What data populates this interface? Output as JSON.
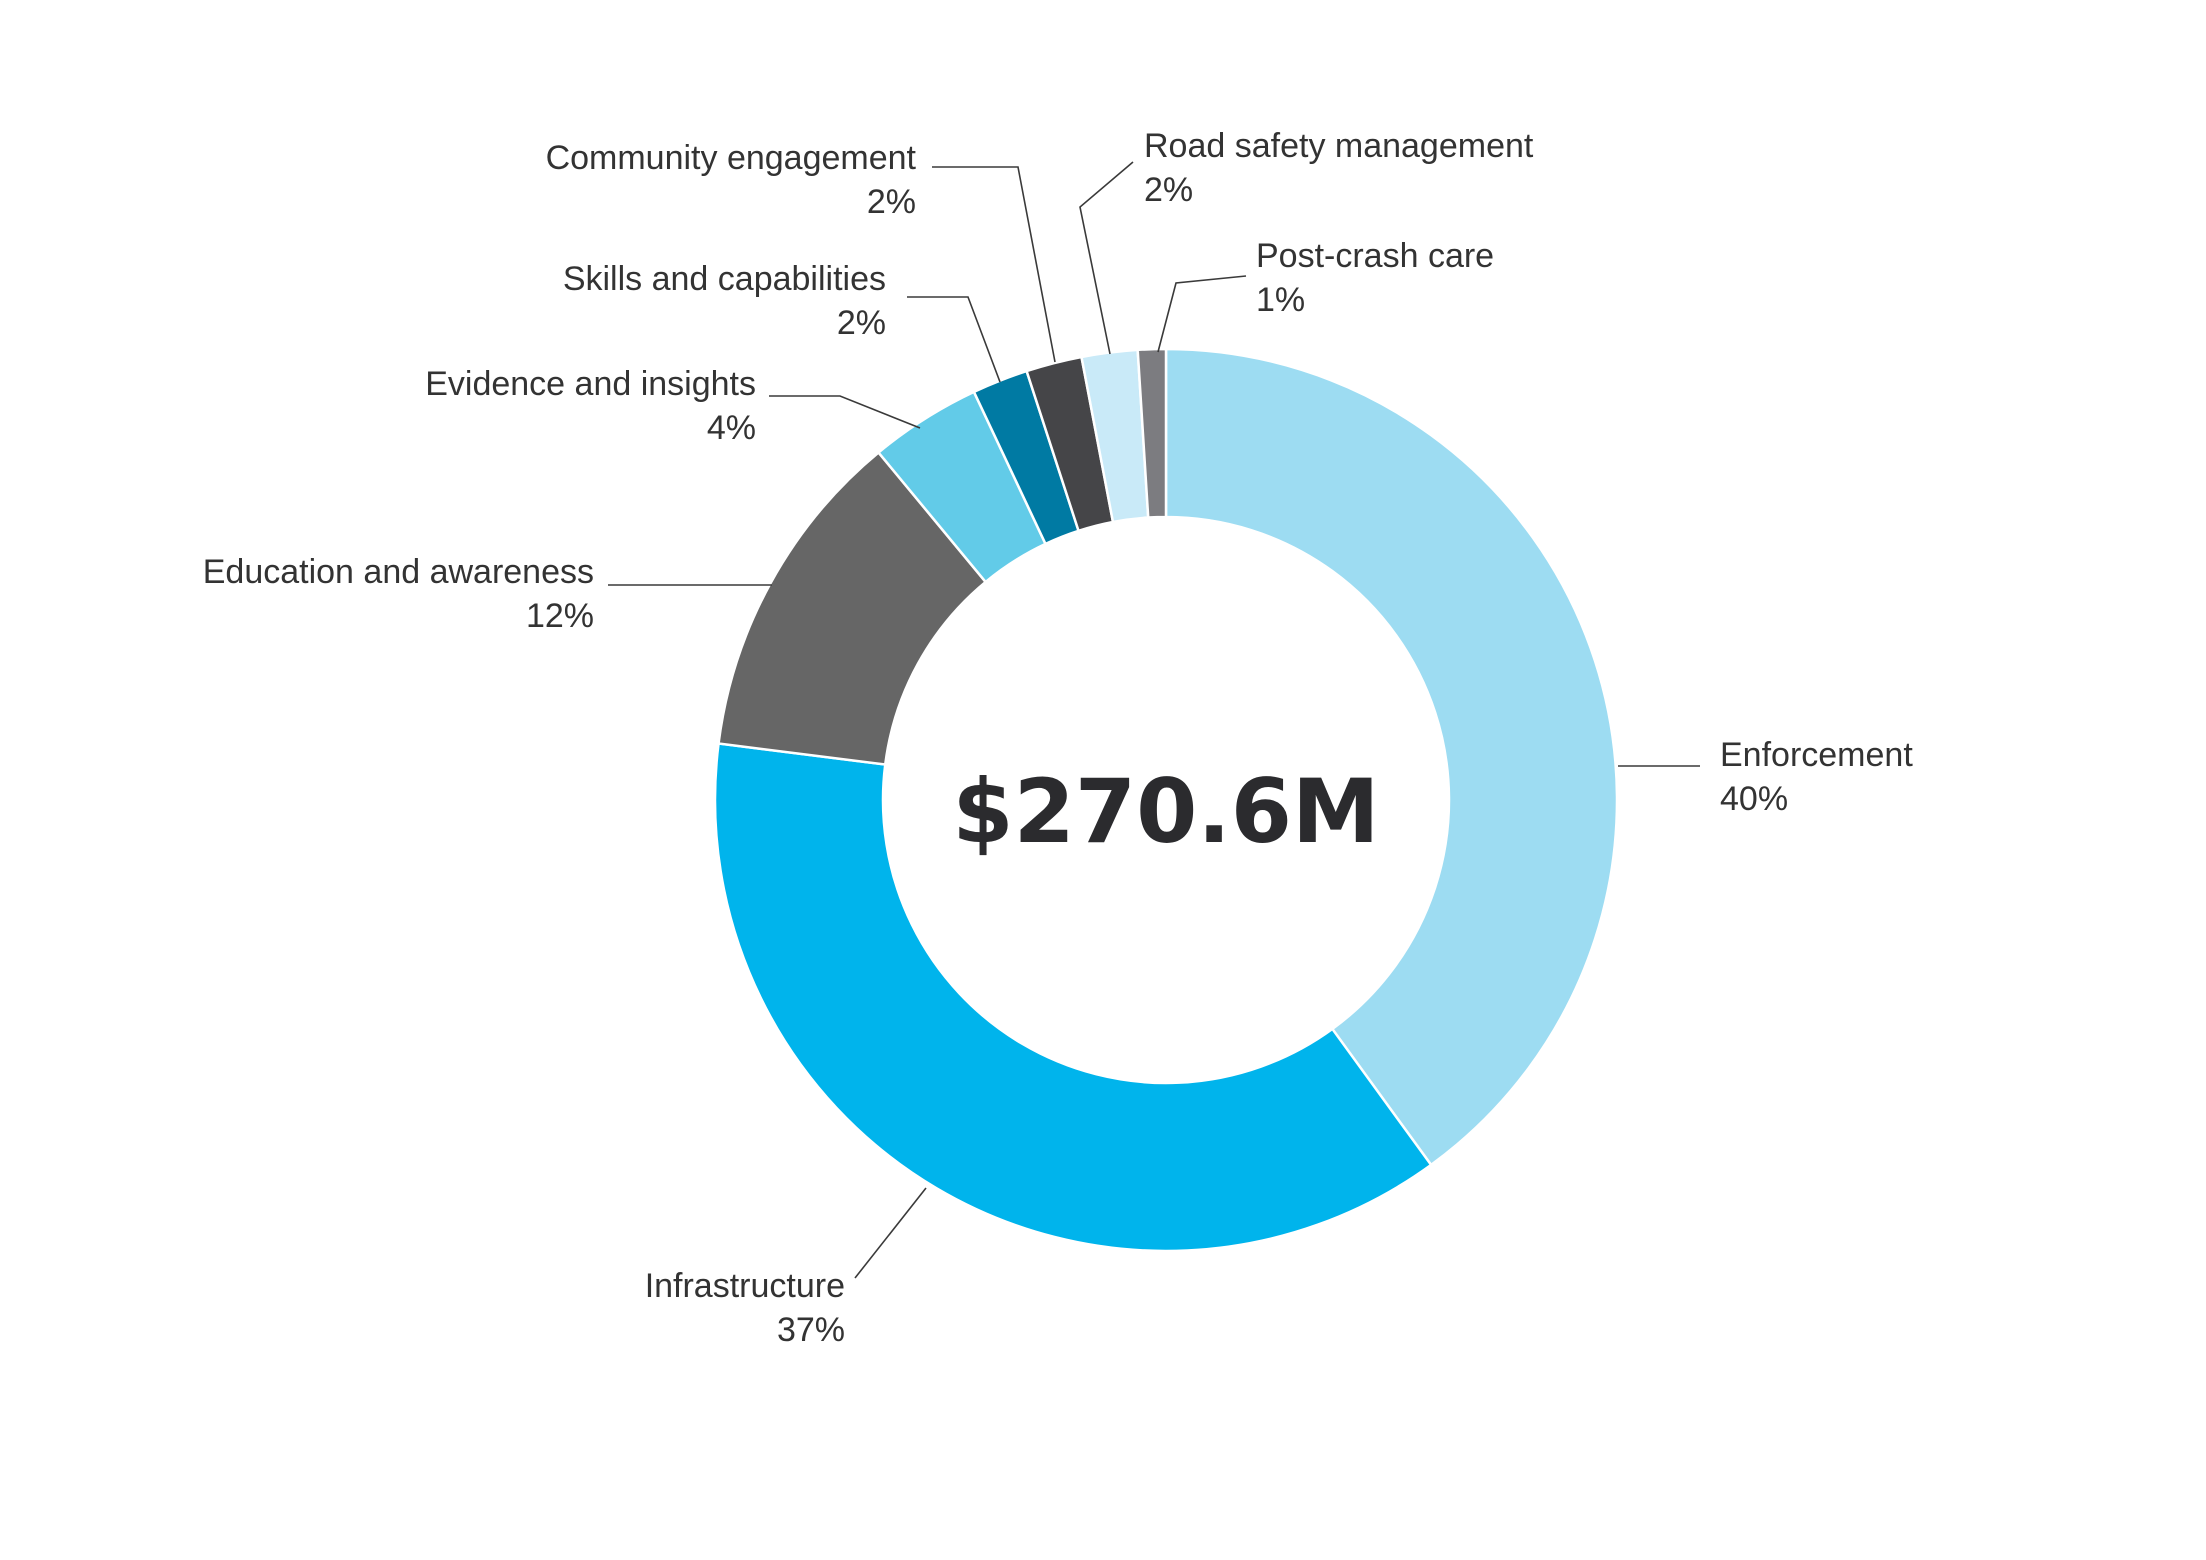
{
  "chart_data": {
    "type": "pie",
    "variant": "donut",
    "center_label": "$270.6M",
    "slices": [
      {
        "label": "Enforcement",
        "value_label": "40%",
        "value": 40,
        "color": "#9ddcf2"
      },
      {
        "label": "Infrastructure",
        "value_label": "37%",
        "value": 37,
        "color": "#00b4ec"
      },
      {
        "label": "Education and awareness",
        "value_label": "12%",
        "value": 12,
        "color": "#666666"
      },
      {
        "label": "Evidence and insights",
        "value_label": "4%",
        "value": 4,
        "color": "#62cbe8"
      },
      {
        "label": "Skills and capabilities",
        "value_label": "2%",
        "value": 2,
        "color": "#007aa3"
      },
      {
        "label": "Community engagement",
        "value_label": "2%",
        "value": 2,
        "color": "#454548"
      },
      {
        "label": "Road safety management",
        "value_label": "2%",
        "value": 2,
        "color": "#c9eaf8"
      },
      {
        "label": "Post-crash care",
        "value_label": "1%",
        "value": 1,
        "color": "#7c7c80"
      }
    ],
    "legend": "none (direct labels with leader lines)"
  }
}
